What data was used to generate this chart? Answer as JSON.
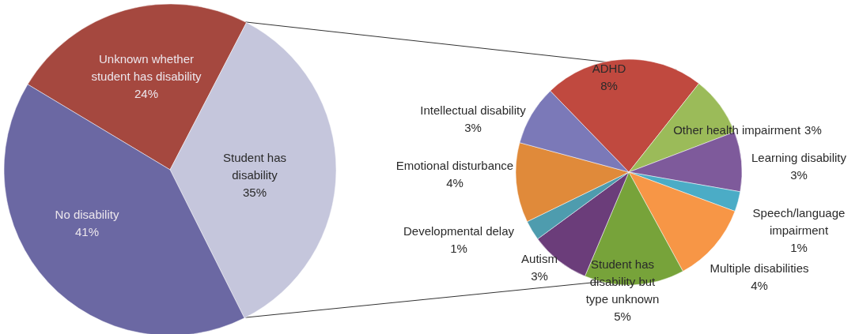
{
  "chart_data": [
    {
      "type": "pie",
      "categories": [
        "Unknown whether student has disability",
        "Student has disability",
        "No disability"
      ],
      "values": [
        24,
        35,
        41
      ],
      "value_labels": [
        "24%",
        "35%",
        "41%"
      ],
      "colors": [
        "#a5483f",
        "#c5c6dc",
        "#6b68a3"
      ]
    },
    {
      "type": "pie",
      "categories": [
        "ADHD",
        "Other health impairment",
        "Learning disability",
        "Speech/language impairment",
        "Multiple disabilities",
        "Student has disability but type unknown",
        "Autism",
        "Developmental delay",
        "Emotional disturbance",
        "Intellectual disability"
      ],
      "values": [
        8,
        3,
        3,
        1,
        4,
        5,
        3,
        1,
        4,
        3
      ],
      "value_labels": [
        "8%",
        "3%",
        "3%",
        "1%",
        "4%",
        "5%",
        "3%",
        "1%",
        "4%",
        "3%"
      ],
      "colors": [
        "#c0493f",
        "#9bbb59",
        "#7e5a9b",
        "#4bacc6",
        "#f79646",
        "#77a33a",
        "#6b3d7a",
        "#4e9cae",
        "#e08a3a",
        "#7b79b8"
      ]
    }
  ]
}
